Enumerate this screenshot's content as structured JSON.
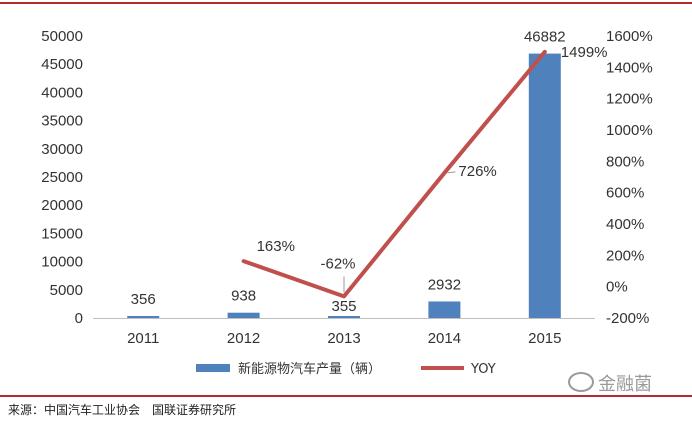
{
  "chart_data": {
    "type": "bar",
    "categories": [
      "2011",
      "2012",
      "2013",
      "2014",
      "2015"
    ],
    "series": [
      {
        "name": "新能源物汽车产量（辆）",
        "type": "bar",
        "axis": "left",
        "values": [
          356,
          938,
          355,
          2932,
          46882
        ],
        "labels": [
          "356",
          "938",
          "355",
          "2932",
          "46882"
        ],
        "color": "#4f81bd"
      },
      {
        "name": "YOY",
        "type": "line",
        "axis": "right",
        "values": [
          null,
          163,
          -62,
          726,
          1499
        ],
        "labels": [
          "",
          "163%",
          "-62%",
          "726%",
          "1499%"
        ],
        "color": "#c0504d"
      }
    ],
    "y_left": {
      "min": 0,
      "max": 50000,
      "ticks": [
        0,
        5000,
        10000,
        15000,
        20000,
        25000,
        30000,
        35000,
        40000,
        45000,
        50000
      ],
      "tick_labels": [
        "0",
        "5000",
        "10000",
        "15000",
        "20000",
        "25000",
        "30000",
        "35000",
        "40000",
        "45000",
        "50000"
      ]
    },
    "y_right": {
      "min": -200,
      "max": 1600,
      "ticks": [
        -200,
        0,
        200,
        400,
        600,
        800,
        1000,
        1200,
        1400,
        1600
      ],
      "tick_labels": [
        "-200%",
        "0%",
        "200%",
        "400%",
        "600%",
        "800%",
        "1000%",
        "1200%",
        "1400%",
        "1600%"
      ]
    },
    "title": "",
    "xlabel": "",
    "ylabel": "",
    "grid": false,
    "legend_position": "bottom"
  },
  "footer": {
    "source": "来源：中国汽车工业协会　国联证券研究所",
    "watermark": "金融菌"
  }
}
